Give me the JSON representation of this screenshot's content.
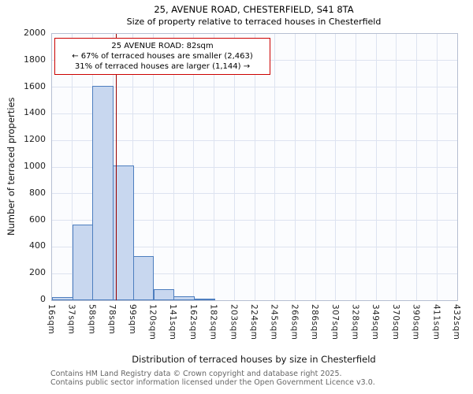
{
  "title": {
    "line1": "25, AVENUE ROAD, CHESTERFIELD, S41 8TA",
    "line2": "Size of property relative to terraced houses in Chesterfield"
  },
  "axes": {
    "y_label": "Number of terraced properties",
    "x_label": "Distribution of terraced houses by size in Chesterfield"
  },
  "annotation": {
    "line1": "25 AVENUE ROAD: 82sqm",
    "line2": "← 67% of terraced houses are smaller (2,463)",
    "line3": "31% of terraced houses are larger (1,144) →"
  },
  "footer": {
    "line1": "Contains HM Land Registry data © Crown copyright and database right 2025.",
    "line2": "Contains public sector information licensed under the Open Government Licence v3.0."
  },
  "chart_data": {
    "type": "bar",
    "title": "25, AVENUE ROAD, CHESTERFIELD, S41 8TA",
    "subtitle": "Size of property relative to terraced houses in Chesterfield",
    "xlabel": "Distribution of terraced houses by size in Chesterfield",
    "ylabel": "Number of terraced properties",
    "categories": [
      "16sqm",
      "37sqm",
      "58sqm",
      "78sqm",
      "99sqm",
      "120sqm",
      "141sqm",
      "162sqm",
      "182sqm",
      "203sqm",
      "224sqm",
      "245sqm",
      "266sqm",
      "286sqm",
      "307sqm",
      "328sqm",
      "349sqm",
      "370sqm",
      "390sqm",
      "411sqm",
      "432sqm"
    ],
    "values": [
      25,
      570,
      1610,
      1010,
      330,
      85,
      30,
      10,
      0,
      0,
      0,
      0,
      0,
      0,
      0,
      0,
      0,
      0,
      0,
      0
    ],
    "ylim": [
      0,
      2000
    ],
    "ytick_step": 200,
    "grid": true,
    "marker": {
      "label": "25 AVENUE ROAD",
      "value": 82,
      "unit": "sqm",
      "smaller_pct": 67,
      "smaller_count": "2,463",
      "larger_pct": 31,
      "larger_count": "1,144",
      "line_color": "#990000"
    },
    "colors": {
      "bar_fill": "#c8d7ef",
      "bar_edge": "#4d7ebf",
      "grid": "#dde3f0",
      "plot_bg": "#fbfcfe"
    }
  }
}
